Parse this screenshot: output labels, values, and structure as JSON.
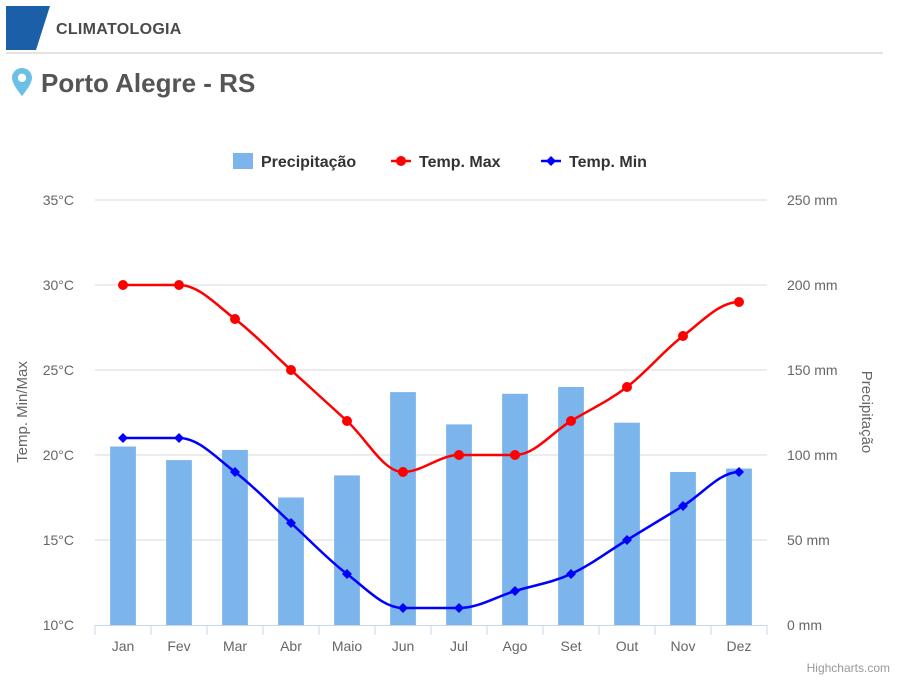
{
  "header": {
    "section_label": "CLIMATOLOGIA",
    "accent_color": "#1b5fa8",
    "location_icon": "map-pin-icon",
    "pin_color": "#6cc0e6"
  },
  "city": {
    "title": "Porto Alegre - RS"
  },
  "credits": "Highcharts.com",
  "chart_data": {
    "type": "bar",
    "categories": [
      "Jan",
      "Fev",
      "Mar",
      "Abr",
      "Maio",
      "Jun",
      "Jul",
      "Ago",
      "Set",
      "Out",
      "Nov",
      "Dez"
    ],
    "series": [
      {
        "name": "Precipitação",
        "type": "bar",
        "axis": "right",
        "color": "#7cb5ec",
        "values": [
          105,
          97,
          103,
          75,
          88,
          137,
          118,
          136,
          140,
          119,
          90,
          92
        ]
      },
      {
        "name": "Temp. Max",
        "type": "line",
        "axis": "left",
        "color": "#ff0000",
        "marker": "circle",
        "values": [
          30,
          30,
          28,
          25,
          22,
          19,
          20,
          20,
          22,
          24,
          27,
          29
        ]
      },
      {
        "name": "Temp. Min",
        "type": "line",
        "axis": "left",
        "color": "#0000ff",
        "marker": "diamond",
        "values": [
          21,
          21,
          19,
          16,
          13,
          11,
          11,
          12,
          13,
          15,
          17,
          19
        ]
      }
    ],
    "y_left": {
      "label": "Temp. Min/Max",
      "ylim": [
        10,
        35
      ],
      "ticks": [
        "10°C",
        "15°C",
        "20°C",
        "25°C",
        "30°C",
        "35°C"
      ]
    },
    "y_right": {
      "label": "Precipitação",
      "ylim": [
        0,
        250
      ],
      "ticks": [
        "0 mm",
        "50 mm",
        "100 mm",
        "150 mm",
        "200 mm",
        "250 mm"
      ]
    },
    "legend_position": "top-center",
    "grid": true
  }
}
